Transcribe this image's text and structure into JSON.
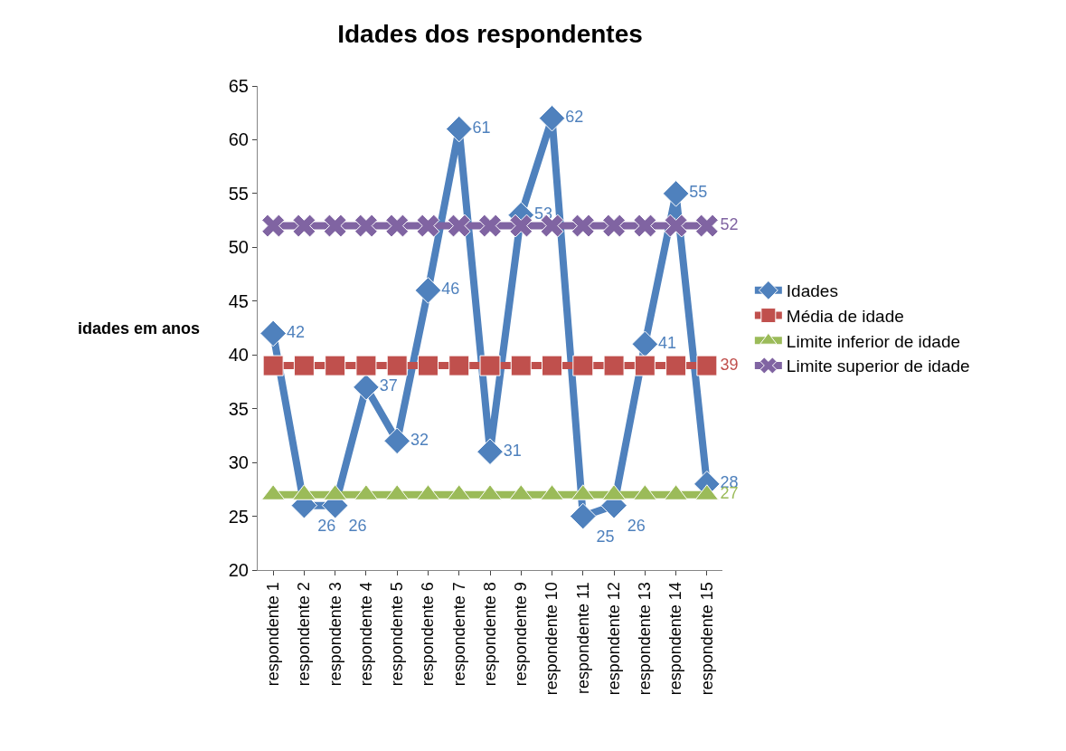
{
  "chart_data": {
    "type": "line",
    "title": "Idades dos respondentes",
    "ylabel": "idades em anos",
    "categories": [
      "respondente 1",
      "respondente 2",
      "respondente 3",
      "respondente 4",
      "respondente 5",
      "respondente 6",
      "respondente 7",
      "respondente 8",
      "respondente 9",
      "respondente 10",
      "respondente 11",
      "respondente 12",
      "respondente 13",
      "respondente 14",
      "respondente 15"
    ],
    "series": [
      {
        "name": "Idades",
        "color": "#4f81bd",
        "marker": "diamond",
        "values": [
          42,
          26,
          26,
          37,
          32,
          46,
          61,
          31,
          53,
          62,
          25,
          26,
          41,
          55,
          28
        ],
        "value_labels": [
          "42",
          "26",
          "26",
          "37",
          "32",
          "46",
          "61",
          "31",
          "53",
          "62",
          "25",
          "26",
          "41",
          "55",
          "28"
        ]
      },
      {
        "name": "Média de idade",
        "color": "#c0504d",
        "marker": "square",
        "values": [
          39,
          39,
          39,
          39,
          39,
          39,
          39,
          39,
          39,
          39,
          39,
          39,
          39,
          39,
          39
        ],
        "value_labels": [
          null,
          null,
          null,
          null,
          null,
          null,
          null,
          null,
          null,
          null,
          null,
          null,
          null,
          null,
          "39"
        ]
      },
      {
        "name": "Limite inferior de idade",
        "color": "#9bbb59",
        "marker": "triangle",
        "values": [
          27,
          27,
          27,
          27,
          27,
          27,
          27,
          27,
          27,
          27,
          27,
          27,
          27,
          27,
          27
        ],
        "value_labels": [
          null,
          null,
          null,
          null,
          null,
          null,
          null,
          null,
          null,
          null,
          null,
          null,
          null,
          null,
          "27"
        ]
      },
      {
        "name": "Limite superior de idade",
        "color": "#8064a2",
        "marker": "cross",
        "values": [
          52,
          52,
          52,
          52,
          52,
          52,
          52,
          52,
          52,
          52,
          52,
          52,
          52,
          52,
          52
        ],
        "value_labels": [
          null,
          null,
          null,
          null,
          null,
          null,
          null,
          null,
          null,
          null,
          null,
          null,
          null,
          null,
          "52"
        ]
      }
    ],
    "ylim": [
      20,
      65
    ],
    "yticks": [
      20,
      25,
      30,
      35,
      40,
      45,
      50,
      55,
      60,
      65
    ],
    "legend": "right"
  }
}
